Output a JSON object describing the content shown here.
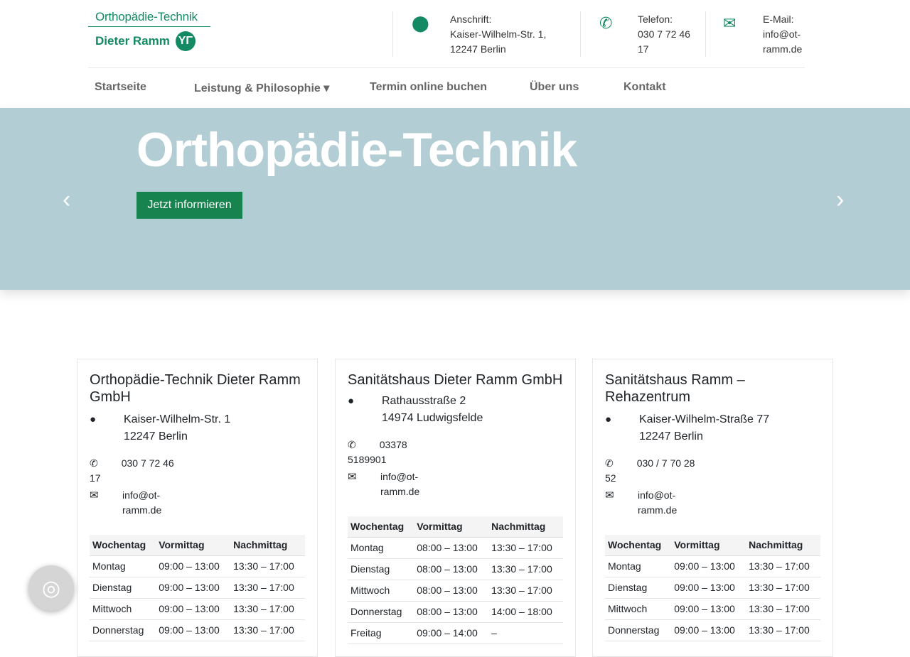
{
  "logo": {
    "line1": "Orthopädie-Technik",
    "line2": "Dieter Ramm"
  },
  "header": {
    "address": {
      "label": "Anschrift:",
      "lines": [
        "Kaiser-Wilhelm-Str. 1,",
        "12247 Berlin"
      ]
    },
    "phone": {
      "label": "Telefon:",
      "lines": [
        "030 7 72 46",
        "17"
      ]
    },
    "email": {
      "label": "E-Mail:",
      "lines": [
        "info@ot-",
        "ramm.de"
      ]
    }
  },
  "nav": [
    "Startseite",
    "Leistung & Philosophie ▾",
    "Termin online buchen",
    "Über uns",
    "Kontakt"
  ],
  "hero": {
    "title": "Orthopädie-Technik",
    "button": "Jetzt informieren",
    "prev": "‹",
    "next": "›"
  },
  "colors": {
    "brand": "#138a63",
    "hero_bg": "#b3cdd5",
    "button": "#17834f"
  },
  "table_headers": [
    "Wochentag",
    "Vormittag",
    "Nachmittag"
  ],
  "cards": [
    {
      "title": "Orthopädie-Technik Dieter Ramm GmbH",
      "address": [
        "Kaiser-Wilhelm-Str. 1",
        "12247 Berlin"
      ],
      "phone": [
        "030 7 72 46",
        "17"
      ],
      "email": [
        "info@ot-",
        "ramm.de"
      ],
      "hours": [
        [
          "Montag",
          "09:00 – 13:00",
          "13:30 – 17:00"
        ],
        [
          "Dienstag",
          "09:00 – 13:00",
          "13:30 – 17:00"
        ],
        [
          "Mittwoch",
          "09:00 – 13:00",
          "13:30 – 17:00"
        ],
        [
          "Donnerstag",
          "09:00 – 13:00",
          "13:30 – 17:00"
        ]
      ]
    },
    {
      "title": "Sanitätshaus Dieter Ramm GmbH",
      "address": [
        "Rathausstraße 2",
        "14974 Ludwigsfelde"
      ],
      "phone": [
        "03378",
        "5189901"
      ],
      "email": [
        "info@ot-",
        "ramm.de"
      ],
      "hours": [
        [
          "Montag",
          "08:00 – 13:00",
          "13:30 – 17:00"
        ],
        [
          "Dienstag",
          "08:00 – 13:00",
          "13:30 – 17:00"
        ],
        [
          "Mittwoch",
          "08:00 – 13:00",
          "13:30 – 17:00"
        ],
        [
          "Donnerstag",
          "08:00 – 13:00",
          "14:00 – 18:00"
        ],
        [
          "Freitag",
          "09:00 – 14:00",
          "–"
        ]
      ]
    },
    {
      "title": "Sanitätshaus Ramm – Rehazentrum",
      "address": [
        "Kaiser-Wilhelm-Straße 77",
        "12247 Berlin"
      ],
      "phone": [
        "030 / 7 70 28",
        "52"
      ],
      "email": [
        "info@ot-",
        "ramm.de"
      ],
      "hours": [
        [
          "Montag",
          "09:00 – 13:00",
          "13:30 – 17:00"
        ],
        [
          "Dienstag",
          "09:00 – 13:00",
          "13:30 – 17:00"
        ],
        [
          "Mittwoch",
          "09:00 – 13:00",
          "13:30 – 17:00"
        ],
        [
          "Donnerstag",
          "09:00 – 13:00",
          "13:30 – 17:00"
        ]
      ]
    }
  ]
}
